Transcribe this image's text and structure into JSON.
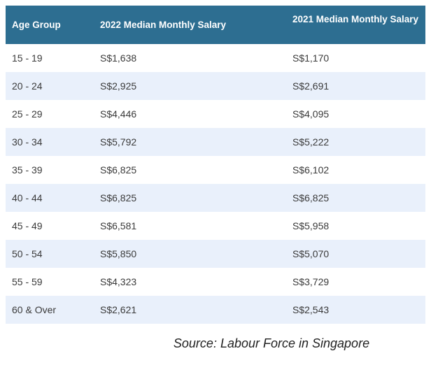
{
  "chart_data": {
    "type": "table",
    "columns": [
      "Age Group",
      "2022 Median Monthly Salary",
      "2021 Median Monthly Salary"
    ],
    "rows": [
      [
        "15 - 19",
        "S$1,638",
        "S$1,170"
      ],
      [
        "20 - 24",
        "S$2,925",
        "S$2,691"
      ],
      [
        "25 - 29",
        "S$4,446",
        "S$4,095"
      ],
      [
        "30 - 34",
        "S$5,792",
        "S$5,222"
      ],
      [
        "35 - 39",
        "S$6,825",
        "S$6,102"
      ],
      [
        "40 - 44",
        "S$6,825",
        "S$6,825"
      ],
      [
        "45 - 49",
        "S$6,581",
        "S$5,958"
      ],
      [
        "50 - 54",
        "S$5,850",
        "S$5,070"
      ],
      [
        "55 - 59",
        "S$4,323",
        "S$3,729"
      ],
      [
        "60 & Over",
        "S$2,621",
        "S$2,543"
      ]
    ],
    "source": "Source: Labour Force in Singapore"
  },
  "footer": {
    "source_text": "Source: Labour Force in Singapore"
  },
  "colors": {
    "header_bg": "#2d6e91",
    "header_text": "#ffffff",
    "row_alt_bg": "#e9f0fb",
    "row_bg": "#ffffff",
    "cell_text": "#3a3a3a",
    "source_text": "#222222"
  }
}
